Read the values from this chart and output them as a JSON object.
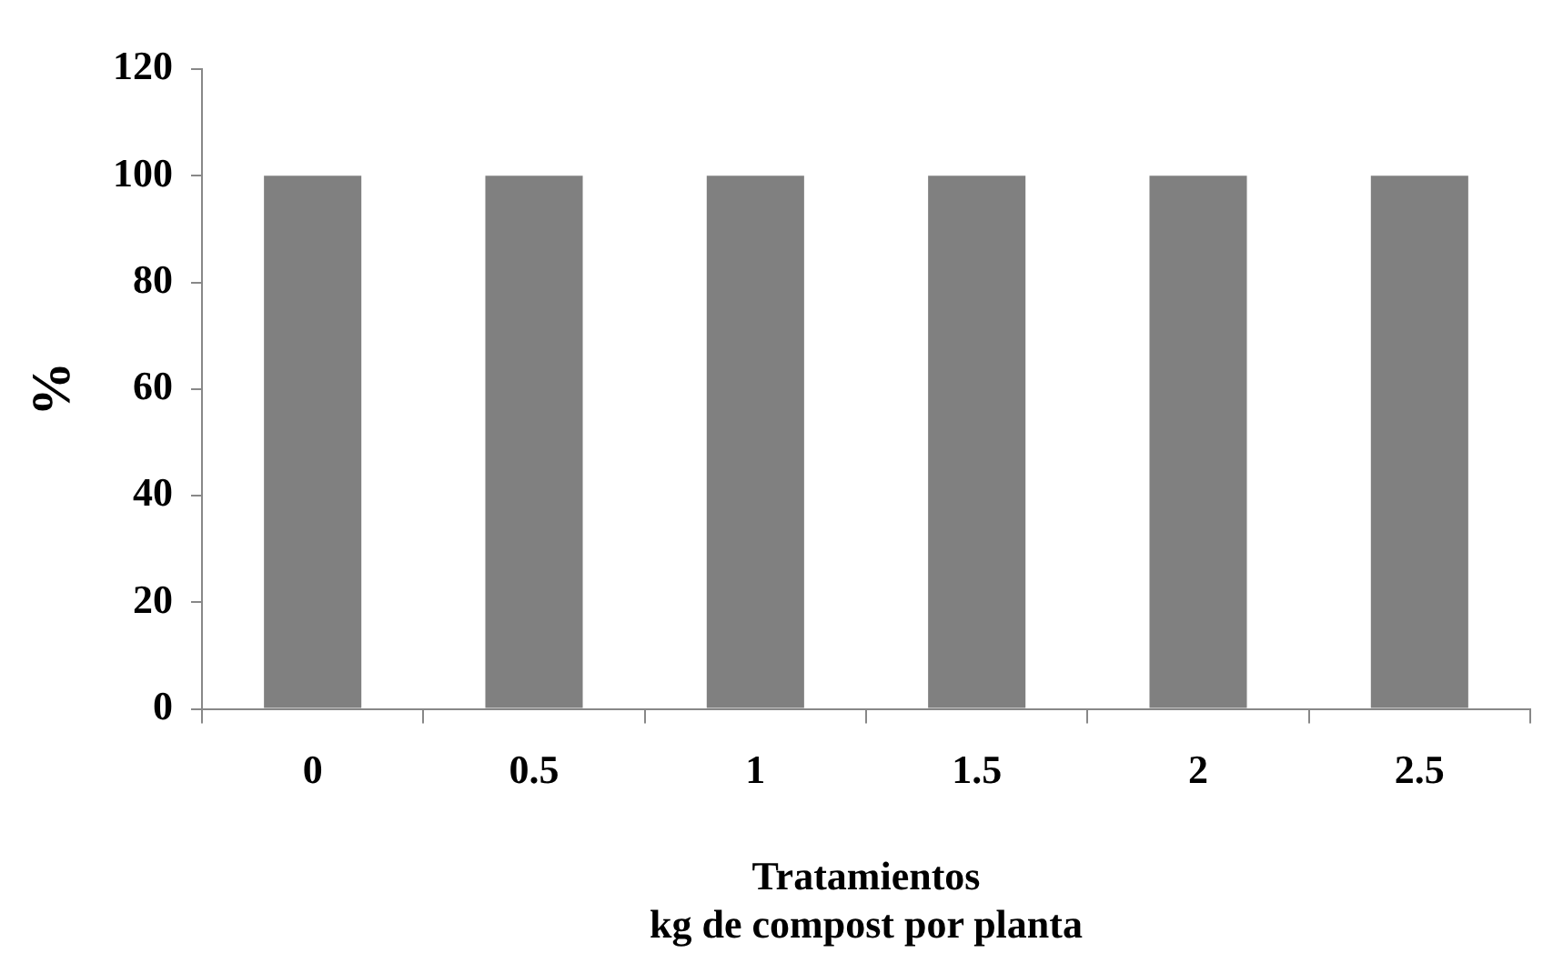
{
  "chart_data": {
    "type": "bar",
    "xlabel": "Tratamientos\nkg de compost por planta",
    "ylabel": "%",
    "categories": [
      "0",
      "0.5",
      "1",
      "1.5",
      "2",
      "2.5"
    ],
    "values": [
      100,
      100,
      100,
      100,
      100,
      100
    ],
    "color": "#808080",
    "ylim": [
      0,
      120
    ],
    "yticks": [
      0,
      20,
      40,
      60,
      80,
      100,
      120
    ],
    "grid": false,
    "legend": false
  }
}
